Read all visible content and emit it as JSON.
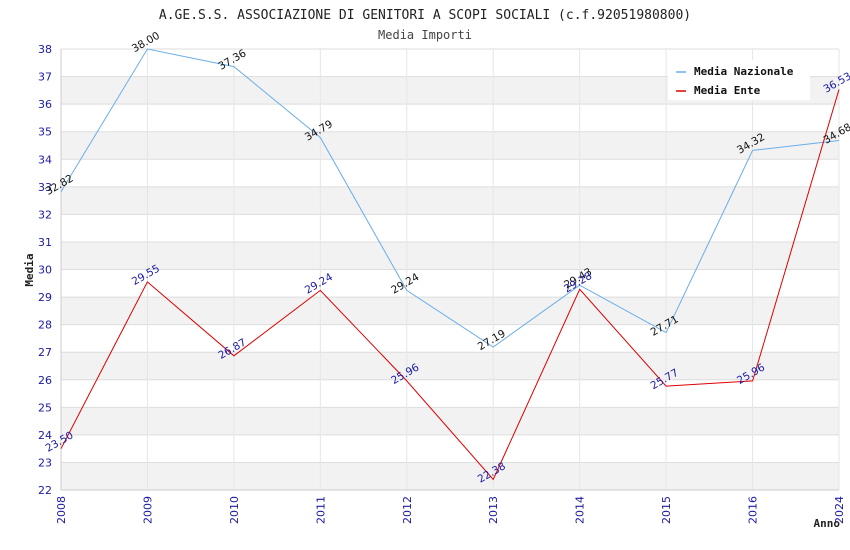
{
  "header": {
    "title": "A.GE.S.S. ASSOCIAZIONE DI GENITORI A SCOPI SOCIALI (c.f.92051980800)",
    "subtitle": "Media Importi"
  },
  "chart_data": {
    "type": "line",
    "title": "A.GE.S.S. ASSOCIAZIONE DI GENITORI A SCOPI SOCIALI (c.f.92051980800)",
    "subtitle": "Media Importi",
    "xlabel": "Anno",
    "ylabel": "Media",
    "ylim": [
      22,
      38
    ],
    "yticks": [
      22,
      23,
      24,
      25,
      26,
      27,
      28,
      29,
      30,
      31,
      32,
      33,
      34,
      35,
      36,
      37,
      38
    ],
    "grid": true,
    "legend_position": "top-right",
    "x": [
      "2008",
      "2009",
      "2010",
      "2011",
      "2012",
      "2013",
      "2014",
      "2015",
      "2016",
      "2024"
    ],
    "series": [
      {
        "name": "Media Nazionale",
        "color": "#6aaee8",
        "label_color": "#111111",
        "values": [
          32.82,
          38.0,
          37.36,
          34.79,
          29.24,
          27.19,
          29.43,
          27.71,
          34.32,
          34.68
        ],
        "labels": [
          "32.82",
          "38.00",
          "37.36",
          "34.79",
          "29.24",
          "27.19",
          "29.43",
          "27.71",
          "34.32",
          "34.68"
        ]
      },
      {
        "name": "Media Ente",
        "color": "#dd0000",
        "label_color": "#1a1aa6",
        "values": [
          23.5,
          29.55,
          26.87,
          29.24,
          25.96,
          22.38,
          29.28,
          25.77,
          25.96,
          36.53
        ],
        "labels": [
          "23.50",
          "29.55",
          "26.87",
          "29.24",
          "25.96",
          "22.38",
          "29.28",
          "25.77",
          "25.96",
          "36.53"
        ]
      }
    ]
  }
}
